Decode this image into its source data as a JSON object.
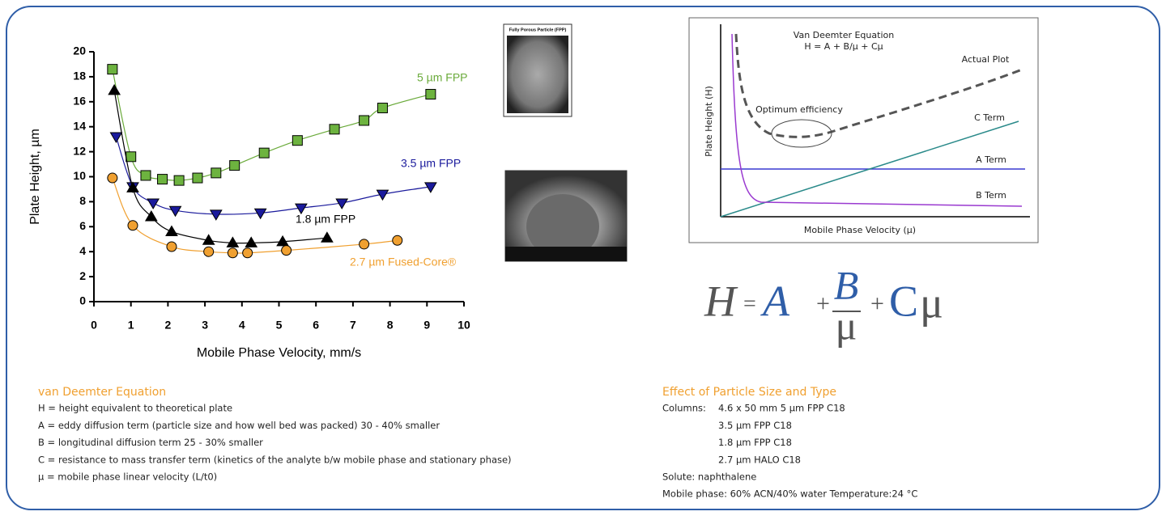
{
  "chart_data": {
    "type": "scatter-line",
    "x_label": "Mobile Phase Velocity, mm/s",
    "y_label": "Plate Height, µm",
    "xlim": [
      0,
      10
    ],
    "xticks": [
      0,
      1,
      2,
      3,
      4,
      5,
      6,
      7,
      8,
      9,
      10
    ],
    "ylim": [
      0,
      20
    ],
    "yticks": [
      0,
      2,
      4,
      6,
      8,
      10,
      12,
      14,
      16,
      18,
      20
    ],
    "series": [
      {
        "name": "5 µm FPP",
        "color": "#6aaa3a",
        "marker": "square",
        "x": [
          0.5,
          1.0,
          1.4,
          1.85,
          2.3,
          2.8,
          3.3,
          3.8,
          4.6,
          5.5,
          6.5,
          7.3,
          7.8,
          9.1
        ],
        "values": [
          18.6,
          11.6,
          10.1,
          9.8,
          9.7,
          9.9,
          10.3,
          10.9,
          11.9,
          12.9,
          13.8,
          14.5,
          15.5,
          16.6
        ]
      },
      {
        "name": "3.5 µm FPP",
        "color": "#1a1a9c",
        "marker": "triangle-down",
        "x": [
          0.6,
          1.05,
          1.6,
          2.2,
          3.3,
          4.5,
          5.6,
          6.7,
          7.8,
          9.1
        ],
        "values": [
          13.2,
          9.2,
          7.9,
          7.3,
          7.0,
          7.1,
          7.5,
          7.9,
          8.6,
          9.2
        ]
      },
      {
        "name": "1.8 µm FPP",
        "color": "#000000",
        "marker": "triangle-up",
        "x": [
          0.55,
          1.05,
          1.55,
          2.1,
          3.1,
          3.75,
          4.25,
          5.1,
          6.3
        ],
        "values": [
          16.9,
          9.1,
          6.8,
          5.6,
          4.9,
          4.7,
          4.7,
          4.8,
          5.1
        ]
      },
      {
        "name": "2.7 µm Fused-Core®",
        "color": "#f0a030",
        "marker": "circle",
        "x": [
          0.5,
          1.05,
          2.1,
          3.1,
          3.75,
          4.15,
          5.2,
          7.3,
          8.2
        ],
        "values": [
          9.9,
          6.1,
          4.4,
          4.0,
          3.9,
          3.9,
          4.1,
          4.6,
          4.9
        ]
      }
    ]
  },
  "image_caption": "Fully Porous Particle (FPP)",
  "diagram": {
    "title": "Van Deemter Equation",
    "equation": "H = A + B/µ + Cµ",
    "y_label": "Plate Height (H)",
    "x_label": "Mobile Phase Velocity (µ)",
    "actual_plot": "Actual Plot",
    "c_term": "C Term",
    "a_term": "A Term",
    "b_term": "B Term",
    "optimum": "Optimum efficiency"
  },
  "equation": {
    "lhs": "H",
    "equals": "=",
    "a": "A",
    "plus": "+",
    "numerator": "B",
    "denominator": "μ",
    "c": "C",
    "mu": "μ"
  },
  "left_notes": {
    "title": "van Deemter Equation",
    "lines": [
      "H = height equivalent to theoretical plate",
      "A = eddy diffusion term (particle size and how well bed was packed) 30 - 40% smaller",
      "B = longitudinal diffusion term 25 - 30% smaller",
      "C = resistance to mass transfer term (kinetics of the analyte b/w mobile phase and stationary phase)",
      "µ = mobile phase linear velocity (L/t0)"
    ]
  },
  "right_notes": {
    "title": "Effect of Particle Size and Type",
    "columns_label": "Columns:",
    "columns": [
      "4.6 x 50 mm   5 µm FPP C18",
      "3.5 µm FPP C18",
      "1.8 µm FPP C18",
      "2.7 µm HALO C18"
    ],
    "solute": "Solute: naphthalene",
    "mobile_phase": "Mobile phase: 60% ACN/40% water Temperature:24 °C"
  }
}
